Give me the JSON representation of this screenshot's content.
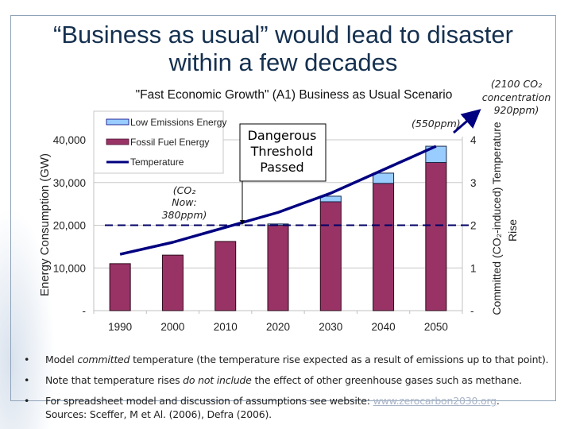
{
  "slide": {
    "title_line1": "“Business as usual” would lead to disaster",
    "title_line2": "within a few decades"
  },
  "chart_data": {
    "type": "bar",
    "stacked": true,
    "title": "\"Fast Economic Growth\" (A1) Business as Usual Scenario",
    "categories": [
      "1990",
      "2000",
      "2010",
      "2020",
      "2030",
      "2040",
      "2050"
    ],
    "series": [
      {
        "name": "Fossil Fuel Energy",
        "type": "bar",
        "axis": "left",
        "color": "#993366",
        "values": [
          11000,
          13000,
          16200,
          20000,
          25500,
          29800,
          34700
        ]
      },
      {
        "name": "Low Emissions Energy",
        "type": "bar",
        "axis": "left",
        "color": "#99ccff",
        "values": [
          0,
          0,
          0,
          300,
          1300,
          2400,
          3800
        ]
      },
      {
        "name": "Temperature",
        "type": "line",
        "axis": "right",
        "color": "#000080",
        "values": [
          1.32,
          1.6,
          1.95,
          2.3,
          2.75,
          3.3,
          3.85
        ]
      }
    ],
    "ylabel": "Energy Consumption (GW)",
    "ylim": [
      0,
      40000
    ],
    "yticks": [
      "-",
      "10,000",
      "20,000",
      "30,000",
      "40,000"
    ],
    "y2label_line1": "Committed (CO₂-induced) Temperature",
    "y2label_line2": "Rise",
    "y2lim": [
      0,
      4
    ],
    "y2ticks": [
      "-",
      "1",
      "2",
      "3",
      "4"
    ],
    "threshold": {
      "value": 2,
      "style": "dashed",
      "color": "#000066"
    },
    "grid": true,
    "legend": {
      "placement": "top-left",
      "entries": [
        "Low  Emissions Energy",
        "Fossil Fuel Energy",
        "Temperature"
      ]
    },
    "annotations": {
      "danger_box": [
        "Dangerous",
        "Threshold",
        "Passed"
      ],
      "co2_now": [
        "(CO₂",
        "Now:",
        "380ppm)"
      ],
      "ppm550": "(550ppm)",
      "co2_2100": [
        "(2100 CO₂",
        "concentration",
        "920ppm)"
      ]
    }
  },
  "bullets": [
    {
      "pre": "Model ",
      "em": "committed",
      "post": " temperature (the temperature rise expected as a result of emissions up to that point)."
    },
    {
      "pre": "Note that temperature rises ",
      "em": "do not include",
      "post": " the effect of other greenhouse gases such as methane."
    },
    {
      "pre": "For spreadsheet model and discussion of assumptions see website: ",
      "link": "www.zerocarbon2030.org",
      "post": "."
    }
  ],
  "bullet_glyph": "•",
  "sources": "Sources: Sceffer, M et Al. (2006),  Defra (2006)."
}
